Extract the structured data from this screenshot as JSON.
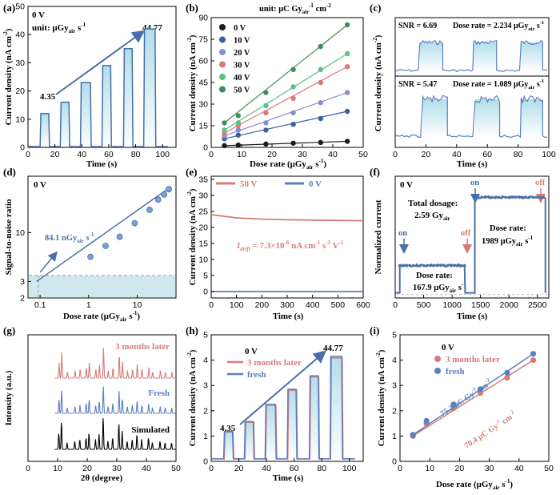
{
  "chart_data": [
    {
      "id": "a",
      "type": "line",
      "panel_label": "(a)",
      "annotation_bias": "0 V",
      "annotation_unit": "unit: μGy",
      "annotation_unit_sub": "air",
      "annotation_unit_sup": "-1",
      "annotation_unit_pre_sup": " s",
      "start_value": "4.35",
      "end_value": "44.77",
      "xlabel": "Time (s)",
      "ylabel": "Current density (nA cm",
      "ylabel_sup": "-2",
      "ylabel_end": ")",
      "xlim": [
        0,
        110
      ],
      "ylim": [
        0,
        50
      ],
      "xticks": [
        0,
        20,
        40,
        60,
        80,
        100
      ],
      "yticks": [
        0,
        10,
        20,
        30,
        40,
        50
      ],
      "pulses": [
        {
          "x": [
            9,
            16
          ],
          "level": 12
        },
        {
          "x": [
            24,
            31
          ],
          "level": 16
        },
        {
          "x": [
            39,
            47
          ],
          "level": 23
        },
        {
          "x": [
            55,
            62
          ],
          "level": 29
        },
        {
          "x": [
            71,
            78
          ],
          "level": 35
        },
        {
          "x": [
            86,
            95
          ],
          "level": 42
        }
      ]
    },
    {
      "id": "b",
      "type": "scatter",
      "panel_label": "(b)",
      "unit_text": "unit: μC Gy",
      "unit_sub": "air",
      "unit_sup": "-1",
      "unit_tail": " cm",
      "unit_tail_sup": "-2",
      "xlabel": "Dose rate (μGy",
      "xlabel_sub": "air",
      "xlabel_mid": " s",
      "xlabel_sup": "-1",
      "xlabel_end": ")",
      "ylabel": "Current density (nA cm",
      "ylabel_sup": "-2",
      "ylabel_end": ")",
      "xlim": [
        0,
        50
      ],
      "ylim": [
        0,
        90
      ],
      "xticks": [
        0,
        10,
        20,
        30,
        40,
        50
      ],
      "yticks": [
        0,
        15,
        30,
        45,
        60,
        75,
        90
      ],
      "x": [
        4.35,
        8.9,
        18,
        27,
        36,
        44.77
      ],
      "series": [
        {
          "name": "0 V",
          "color": "#1a1a1a",
          "values": [
            1.2,
            1.6,
            2.3,
            2.9,
            3.4,
            4.2
          ]
        },
        {
          "name": "10 V",
          "color": "#3d5f9d",
          "values": [
            6,
            8.5,
            12,
            16,
            20,
            25
          ]
        },
        {
          "name": "20 V",
          "color": "#8a8bd3",
          "values": [
            8,
            12,
            17,
            24,
            31,
            38
          ]
        },
        {
          "name": "30 V",
          "color": "#d77b78",
          "values": [
            10,
            15,
            24,
            34,
            45,
            56
          ]
        },
        {
          "name": "40 V",
          "color": "#5bbf8e",
          "values": [
            12,
            17,
            29,
            42,
            54,
            65
          ]
        },
        {
          "name": "50 V",
          "color": "#3e8e5c",
          "values": [
            17,
            22,
            38,
            54,
            70,
            85
          ]
        }
      ]
    },
    {
      "id": "c",
      "type": "line",
      "panel_label": "(c)",
      "xlabel": "Time (s)",
      "ylabel": "Current density (nA cm",
      "ylabel_sup": "-2",
      "ylabel_end": ")",
      "xlim": [
        0,
        100
      ],
      "xticks": [
        0,
        20,
        40,
        60,
        80,
        100
      ],
      "subplots": [
        {
          "snr": "SNR = 6.69",
          "dose": "Dose rate = 2.234 μGy",
          "dose_sub": "air",
          "dose_tail": " s",
          "dose_sup": "-1",
          "pulses": [
            [
              16,
              31
            ],
            [
              51,
              66
            ],
            [
              82,
              96
            ]
          ]
        },
        {
          "snr": "SNR = 5.47",
          "dose": "Dose rate = 1.089 μGy",
          "dose_sub": "air",
          "dose_tail": " s",
          "dose_sup": "-1",
          "pulses": [
            [
              18,
              34
            ],
            [
              52,
              68
            ],
            [
              82,
              96
            ]
          ]
        }
      ]
    },
    {
      "id": "d",
      "type": "scatter",
      "panel_label": "(d)",
      "annotation_bias": "0 V",
      "lod_text": "84.1 nGy",
      "lod_sub": "air",
      "lod_tail": " s",
      "lod_sup": "-1",
      "xlabel": "Dose rate (μGy",
      "xlabel_sub": "air",
      "xlabel_mid": " s",
      "xlabel_sup": "-1",
      "xlabel_end": ")",
      "ylabel": "Signal-to-noise ratio",
      "xscale": "log",
      "yscale": "log",
      "xtick_labels": [
        "0.1",
        "1",
        "10"
      ],
      "ytick_labels": [
        "2",
        "3",
        "10"
      ],
      "x": [
        1.089,
        2.234,
        4.35,
        8.9,
        18,
        27,
        36,
        44.77
      ],
      "y": [
        5.5,
        7.2,
        9.0,
        12.6,
        17.5,
        22.5,
        25.5,
        29.0
      ],
      "threshold": 3,
      "lod": 0.0841
    },
    {
      "id": "e",
      "type": "line",
      "panel_label": "(e)",
      "legend": [
        {
          "name": "50 V",
          "color": "#d77b78"
        },
        {
          "name": "0 V",
          "color": "#5b7fbf"
        }
      ],
      "drift_text": "I",
      "drift_sub": "drift",
      "drift_value": " = 7.3×10",
      "drift_sup1": "-6",
      "drift_tail": " nA cm",
      "drift_sup2": "-1",
      "drift_tail2": " s",
      "drift_sup3": "-1",
      "drift_tail3": " V",
      "drift_sup4": "-1",
      "xlabel": "Time (s)",
      "ylabel": "Current density (nA cm",
      "ylabel_sup": "-2",
      "ylabel_end": ")",
      "xlim": [
        0,
        600
      ],
      "ylim": [
        -2,
        36
      ],
      "xticks": [
        0,
        100,
        200,
        300,
        400,
        500,
        600
      ],
      "yticks": [
        0,
        5,
        10,
        15,
        20,
        25,
        30,
        35
      ],
      "series": [
        {
          "name": "50 V",
          "x": [
            0,
            50,
            100,
            200,
            300,
            400,
            500,
            600
          ],
          "values": [
            24,
            23.5,
            23,
            22.6,
            22.4,
            22.3,
            22.2,
            22.1
          ]
        },
        {
          "name": "0 V",
          "x": [
            0,
            600
          ],
          "values": [
            0,
            0
          ]
        }
      ]
    },
    {
      "id": "f",
      "type": "line",
      "panel_label": "(f)",
      "annotation_bias": "0 V",
      "total_text": "Total dosage:",
      "total_value": "2.59 Gy",
      "total_sub": "air",
      "dose1_label": "Dose rate:",
      "dose1_value": "167.9 μGy",
      "dose1_sub": "air",
      "dose1_tail": " s",
      "dose1_sup": "-1",
      "dose2_label": "Dose rate:",
      "dose2_value": "1989 μGy",
      "dose2_sub": "air",
      "dose2_tail": " s",
      "dose2_sup": "-1",
      "on_label": "on",
      "off_label": "off",
      "xlabel": "Time (s)",
      "ylabel": "Normalized current",
      "xlim": [
        0,
        2700
      ],
      "xticks": [
        0,
        500,
        1000,
        1500,
        2000,
        2500
      ],
      "segments": [
        {
          "x": [
            80,
            1230
          ],
          "level": 0.3
        },
        {
          "x": [
            1400,
            2640
          ],
          "level": 1.0
        }
      ]
    },
    {
      "id": "g",
      "type": "line",
      "panel_label": "(g)",
      "xlabel": "2θ (degree)",
      "ylabel": "Intensity (a.u.)",
      "xlim": [
        0,
        50
      ],
      "xticks": [
        0,
        10,
        20,
        30,
        40,
        50
      ],
      "series": [
        {
          "name": "3 months later",
          "color": "#d77b78"
        },
        {
          "name": "Fresh",
          "color": "#5b7fbf"
        },
        {
          "name": "Simulated",
          "color": "#000000"
        }
      ],
      "peaks": [
        {
          "pos": 10.4,
          "height": 0.5
        },
        {
          "pos": 11.3,
          "height": 0.85
        },
        {
          "pos": 13.2,
          "height": 0.2
        },
        {
          "pos": 15.8,
          "height": 0.25
        },
        {
          "pos": 17.5,
          "height": 0.3
        },
        {
          "pos": 19.6,
          "height": 0.35
        },
        {
          "pos": 20.6,
          "height": 0.5
        },
        {
          "pos": 22.8,
          "height": 0.3
        },
        {
          "pos": 24.0,
          "height": 0.45
        },
        {
          "pos": 25.4,
          "height": 1.0
        },
        {
          "pos": 27.0,
          "height": 0.25
        },
        {
          "pos": 28.6,
          "height": 0.35
        },
        {
          "pos": 30.7,
          "height": 0.8
        },
        {
          "pos": 31.8,
          "height": 0.55
        },
        {
          "pos": 33.5,
          "height": 0.25
        },
        {
          "pos": 35.2,
          "height": 0.3
        },
        {
          "pos": 36.8,
          "height": 0.45
        },
        {
          "pos": 38.4,
          "height": 0.3
        },
        {
          "pos": 40.7,
          "height": 0.35
        },
        {
          "pos": 42.0,
          "height": 0.2
        },
        {
          "pos": 44.6,
          "height": 0.25
        },
        {
          "pos": 46.3,
          "height": 0.2
        },
        {
          "pos": 48.5,
          "height": 0.2
        }
      ]
    },
    {
      "id": "h",
      "type": "line",
      "panel_label": "(h)",
      "annotation_bias": "0 V",
      "legend": [
        {
          "name": "3 months later",
          "color": "#d77b78"
        },
        {
          "name": "fresh",
          "color": "#5b7fbf"
        }
      ],
      "start_value": "4.35",
      "end_value": "44.77",
      "xlabel": "Time (s)",
      "ylabel": "Current density (nA cm",
      "ylabel_sup": "-2",
      "ylabel_end": ")",
      "xlim": [
        0,
        110
      ],
      "ylim": [
        0,
        5
      ],
      "xticks": [
        0,
        20,
        40,
        60,
        80,
        100
      ],
      "yticks": [
        0,
        1,
        2,
        3,
        4,
        5
      ],
      "pulses": [
        {
          "x": [
            9,
            16
          ],
          "level": 1.18
        },
        {
          "x": [
            24,
            31
          ],
          "level": 1.57
        },
        {
          "x": [
            39,
            47
          ],
          "level": 2.25
        },
        {
          "x": [
            55,
            62
          ],
          "level": 2.85
        },
        {
          "x": [
            71,
            78
          ],
          "level": 3.38
        },
        {
          "x": [
            86,
            95
          ],
          "level": 4.15
        }
      ]
    },
    {
      "id": "i",
      "type": "scatter",
      "panel_label": "(i)",
      "annotation_bias": "0 V",
      "xlabel": "Dose rate (μGy",
      "xlabel_sub": "air",
      "xlabel_mid": " s",
      "xlabel_sup": "-1",
      "xlabel_end": ")",
      "ylabel": "Current density (nA cm",
      "ylabel_sup": "-2",
      "ylabel_end": ")",
      "xlim": [
        0,
        50
      ],
      "ylim": [
        0,
        5
      ],
      "xticks": [
        0,
        10,
        20,
        30,
        40,
        50
      ],
      "yticks": [
        0,
        1,
        2,
        3,
        4,
        5
      ],
      "x": [
        4.35,
        8.9,
        18,
        27,
        36,
        44.77
      ],
      "series": [
        {
          "name": "3 months later",
          "color": "#d77b78",
          "values": [
            1.0,
            1.5,
            2.1,
            2.7,
            3.3,
            4.0
          ],
          "sens_text": "70.4 μC Gy",
          "sens_sup": "-1",
          "sens_tail": " cm",
          "sens_sup2": "-2"
        },
        {
          "name": "fresh",
          "color": "#5b7fbf",
          "values": [
            1.05,
            1.6,
            2.25,
            2.85,
            3.5,
            4.25
          ],
          "sens_text": "75.2 μC Gy",
          "sens_sup": "-1",
          "sens_tail": " cm",
          "sens_sup2": "-2"
        }
      ]
    }
  ]
}
